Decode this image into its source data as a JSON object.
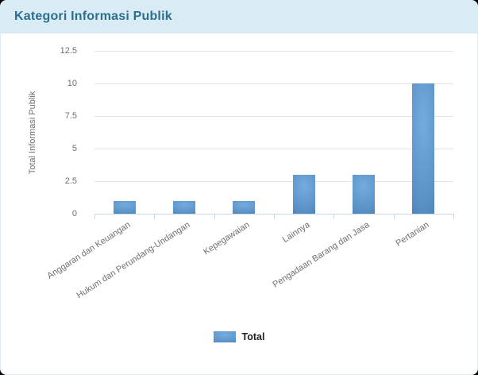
{
  "card": {
    "header_title": "Kategori Informasi Publik"
  },
  "chart_data": {
    "type": "bar",
    "title": "Kategori Informasi Publik",
    "categories": [
      "Anggaran dan Keuangan",
      "Hukum dan Perundang-Undangan",
      "Kepegawaian",
      "Lainnya",
      "Pengadaan Barang dan Jasa",
      "Pertanian"
    ],
    "series": [
      {
        "name": "Total",
        "values": [
          1,
          1,
          1,
          3,
          3,
          10
        ]
      }
    ],
    "values": [
      1,
      1,
      1,
      3,
      3,
      10
    ],
    "xlabel": "",
    "ylabel": "Total Informasi Publik",
    "ylim": [
      0,
      12.5
    ],
    "yticks": [
      0,
      2.5,
      5,
      7.5,
      10,
      12.5
    ],
    "grid": true,
    "legend": {
      "position": "bottom",
      "label": "Total"
    }
  },
  "colors": {
    "header_bg": "#d9ecf4",
    "title_color": "#2c6e8f",
    "bar_edge": "#3b71a7",
    "bar_mid": "#5b92c6",
    "bar_center": "#74acdf",
    "axis_line": "#c7d9ea",
    "gridline": "#e4e4e4",
    "tick_text": "#707070",
    "legend_text": "#1f1f1f"
  }
}
